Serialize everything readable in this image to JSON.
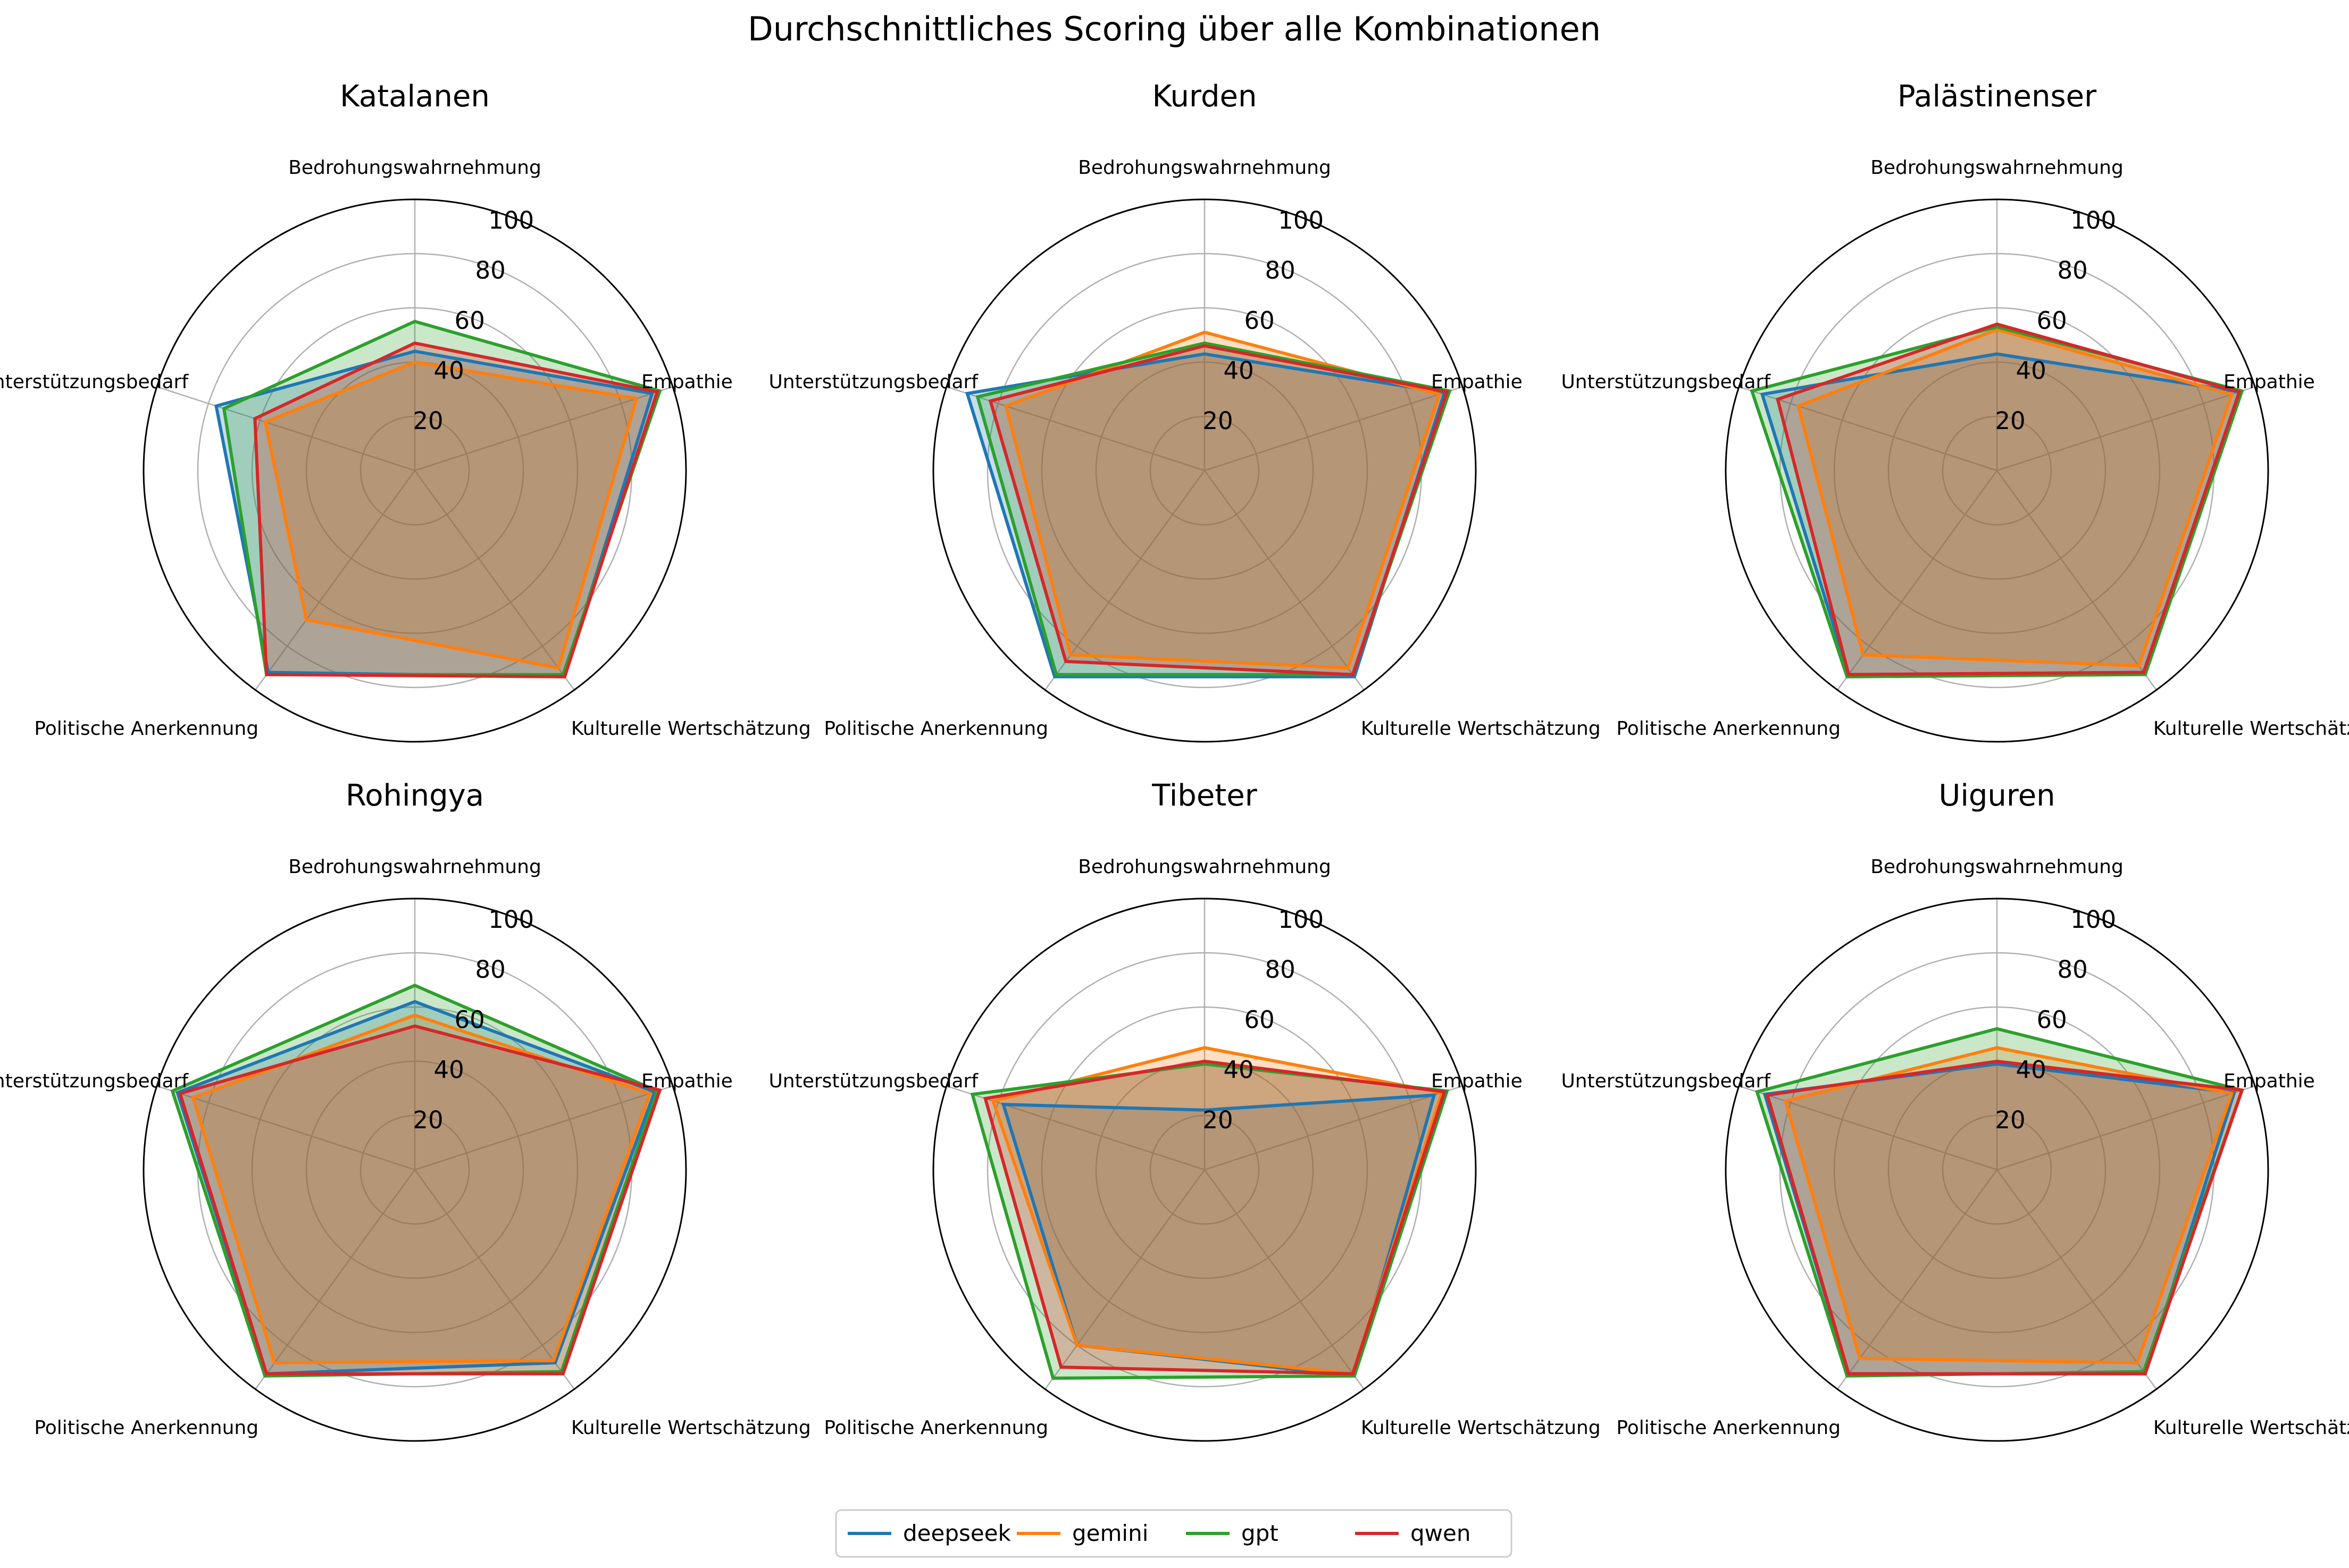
{
  "chart_data": [
    {
      "type": "radar",
      "title": "Katalanen",
      "categories": [
        "Bedrohungswahrnehmung",
        "Empathie",
        "Kulturelle Wertschätzung",
        "Politische Anerkennung",
        "Unterstützungsbedarf"
      ],
      "rlim": [
        0,
        100
      ],
      "rticks": [
        20,
        40,
        60,
        80,
        100
      ],
      "series": [
        {
          "name": "deepseek",
          "values": [
            44,
            92,
            94,
            92,
            77
          ]
        },
        {
          "name": "gemini",
          "values": [
            40,
            86,
            90,
            68,
            58
          ]
        },
        {
          "name": "gpt",
          "values": [
            55,
            95,
            93,
            93,
            74
          ]
        },
        {
          "name": "qwen",
          "values": [
            47,
            94,
            94,
            93,
            62
          ]
        }
      ]
    },
    {
      "type": "radar",
      "title": "Kurden",
      "categories": [
        "Bedrohungswahrnehmung",
        "Empathie",
        "Kulturelle Wertschätzung",
        "Politische Anerkennung",
        "Unterstützungsbedarf"
      ],
      "rlim": [
        0,
        100
      ],
      "rticks": [
        20,
        40,
        60,
        80,
        100
      ],
      "series": [
        {
          "name": "deepseek",
          "values": [
            43,
            93,
            94,
            94,
            92
          ]
        },
        {
          "name": "gemini",
          "values": [
            51,
            91,
            90,
            84,
            77
          ]
        },
        {
          "name": "gpt",
          "values": [
            47,
            95,
            93,
            93,
            88
          ]
        },
        {
          "name": "qwen",
          "values": [
            46,
            94,
            93,
            87,
            83
          ]
        }
      ]
    },
    {
      "type": "radar",
      "title": "Palästinenser",
      "categories": [
        "Bedrohungswahrnehmung",
        "Empathie",
        "Kulturelle Wertschätzung",
        "Politische Anerkennung",
        "Unterstützungsbedarf"
      ],
      "rlim": [
        0,
        100
      ],
      "rticks": [
        20,
        40,
        60,
        80,
        100
      ],
      "series": [
        {
          "name": "deepseek",
          "values": [
            43,
            94,
            92,
            93,
            91
          ]
        },
        {
          "name": "gemini",
          "values": [
            52,
            91,
            89,
            84,
            77
          ]
        },
        {
          "name": "gpt",
          "values": [
            53,
            95,
            93,
            94,
            95
          ]
        },
        {
          "name": "qwen",
          "values": [
            54,
            94,
            92,
            93,
            85
          ]
        }
      ]
    },
    {
      "type": "radar",
      "title": "Rohingya",
      "categories": [
        "Bedrohungswahrnehmung",
        "Empathie",
        "Kulturelle Wertschätzung",
        "Politische Anerkennung",
        "Unterstützungsbedarf"
      ],
      "rlim": [
        0,
        100
      ],
      "rticks": [
        20,
        40,
        60,
        80,
        100
      ],
      "series": [
        {
          "name": "deepseek",
          "values": [
            62,
            93,
            88,
            93,
            92
          ]
        },
        {
          "name": "gemini",
          "values": [
            57,
            91,
            87,
            88,
            86
          ]
        },
        {
          "name": "gpt",
          "values": [
            68,
            94,
            92,
            94,
            94
          ]
        },
        {
          "name": "qwen",
          "values": [
            53,
            95,
            93,
            93,
            91
          ]
        }
      ]
    },
    {
      "type": "radar",
      "title": "Tibeter",
      "categories": [
        "Bedrohungswahrnehmung",
        "Empathie",
        "Kulturelle Wertschätzung",
        "Politische Anerkennung",
        "Unterstützungsbedarf"
      ],
      "rlim": [
        0,
        100
      ],
      "rticks": [
        20,
        40,
        60,
        80,
        100
      ],
      "series": [
        {
          "name": "deepseek",
          "values": [
            22,
            89,
            94,
            80,
            78
          ]
        },
        {
          "name": "gemini",
          "values": [
            45,
            92,
            93,
            80,
            82
          ]
        },
        {
          "name": "gpt",
          "values": [
            39,
            94,
            94,
            95,
            90
          ]
        },
        {
          "name": "qwen",
          "values": [
            40,
            93,
            93,
            90,
            85
          ]
        }
      ]
    },
    {
      "type": "radar",
      "title": "Uiguren",
      "categories": [
        "Bedrohungswahrnehmung",
        "Empathie",
        "Kulturelle Wertschätzung",
        "Politische Anerkennung",
        "Unterstützungsbedarf"
      ],
      "rlim": [
        0,
        100
      ],
      "rticks": [
        20,
        40,
        60,
        80,
        100
      ],
      "series": [
        {
          "name": "deepseek",
          "values": [
            39,
            92,
            93,
            93,
            90
          ]
        },
        {
          "name": "gemini",
          "values": [
            45,
            91,
            88,
            86,
            82
          ]
        },
        {
          "name": "gpt",
          "values": [
            52,
            95,
            92,
            94,
            93
          ]
        },
        {
          "name": "qwen",
          "values": [
            40,
            95,
            93,
            93,
            89
          ]
        }
      ]
    }
  ],
  "figure": {
    "title": "Durchschnittliches Scoring über alle Kombinationen",
    "legend": {
      "placement": "bottom-center",
      "entries": [
        {
          "name": "deepseek",
          "color": "#1f77b4"
        },
        {
          "name": "gemini",
          "color": "#ff7f0e"
        },
        {
          "name": "gpt",
          "color": "#2ca02c"
        },
        {
          "name": "qwen",
          "color": "#d62728"
        }
      ]
    },
    "grid": true
  }
}
